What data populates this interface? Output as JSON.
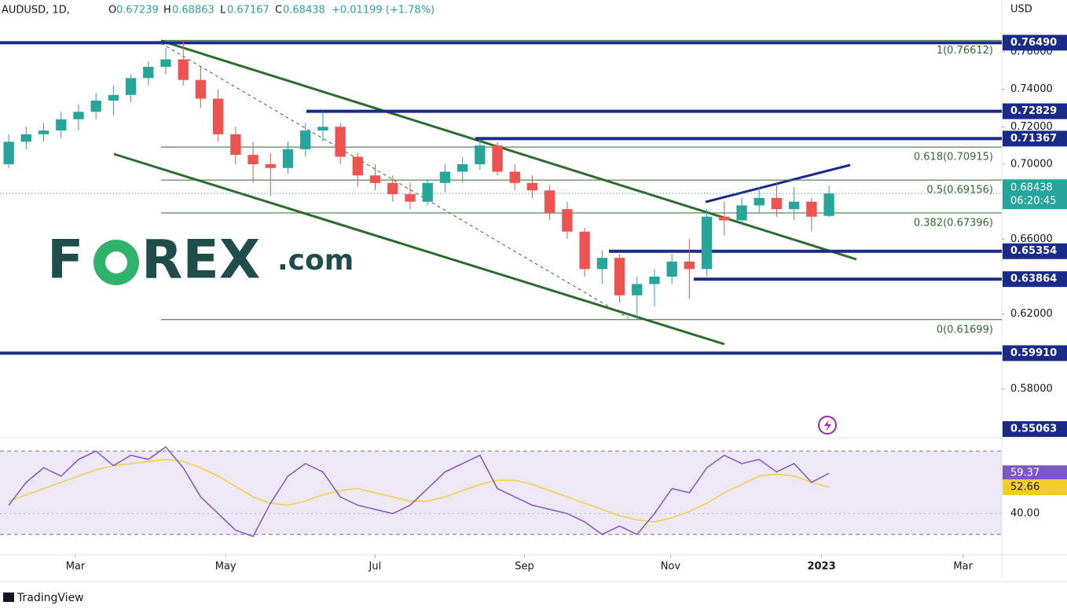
{
  "header": {
    "symbol": "AUDUSD, 1D,",
    "o_label": "O",
    "o": "0.67239",
    "h_label": "H",
    "h": "0.68863",
    "l_label": "L",
    "l": "0.67167",
    "c_label": "C",
    "c": "0.68438",
    "change": "+0.01199 (+1.78%)"
  },
  "currency": "USD",
  "logo": {
    "left": "F",
    "right": "REX",
    "suffix": ".com"
  },
  "footer": "TradingView",
  "countdown": "06:20:45",
  "chart_data": [
    {
      "type": "candlestick",
      "up_color": "#26a69a",
      "down_color": "#ef5350",
      "open": [
        0.7,
        0.712,
        0.716,
        0.718,
        0.724,
        0.728,
        0.734,
        0.737,
        0.746,
        0.752,
        0.756,
        0.745,
        0.735,
        0.716,
        0.705,
        0.7,
        0.698,
        0.708,
        0.718,
        0.72,
        0.704,
        0.694,
        0.69,
        0.684,
        0.68,
        0.69,
        0.696,
        0.7,
        0.71,
        0.696,
        0.69,
        0.686,
        0.676,
        0.664,
        0.644,
        0.65,
        0.63,
        0.636,
        0.64,
        0.648,
        0.644,
        0.672,
        0.67,
        0.678,
        0.682,
        0.676,
        0.68,
        0.67239
      ],
      "high": [
        0.716,
        0.72,
        0.722,
        0.728,
        0.732,
        0.738,
        0.742,
        0.748,
        0.755,
        0.762,
        0.76612,
        0.752,
        0.74,
        0.72,
        0.712,
        0.706,
        0.712,
        0.722,
        0.72829,
        0.722,
        0.706,
        0.7,
        0.694,
        0.69,
        0.692,
        0.7,
        0.704,
        0.71367,
        0.712,
        0.7,
        0.694,
        0.689,
        0.68,
        0.666,
        0.654,
        0.652,
        0.64,
        0.644,
        0.652,
        0.66,
        0.676,
        0.68,
        0.682,
        0.688,
        0.69,
        0.688,
        0.682,
        0.68863
      ],
      "low": [
        0.698,
        0.708,
        0.712,
        0.714,
        0.718,
        0.724,
        0.726,
        0.733,
        0.742,
        0.748,
        0.742,
        0.73,
        0.712,
        0.7,
        0.69,
        0.683,
        0.695,
        0.704,
        0.712,
        0.7,
        0.688,
        0.686,
        0.68,
        0.676,
        0.678,
        0.685,
        0.69,
        0.697,
        0.694,
        0.686,
        0.682,
        0.67,
        0.66,
        0.64,
        0.636,
        0.626,
        0.61699,
        0.624,
        0.636,
        0.628,
        0.64,
        0.662,
        0.668,
        0.674,
        0.672,
        0.67,
        0.664,
        0.67167
      ],
      "close": [
        0.712,
        0.716,
        0.718,
        0.724,
        0.728,
        0.734,
        0.737,
        0.746,
        0.752,
        0.756,
        0.745,
        0.735,
        0.716,
        0.705,
        0.7,
        0.698,
        0.708,
        0.718,
        0.72,
        0.704,
        0.694,
        0.69,
        0.684,
        0.68,
        0.69,
        0.696,
        0.7,
        0.71,
        0.696,
        0.69,
        0.686,
        0.674,
        0.664,
        0.644,
        0.65,
        0.63,
        0.636,
        0.64,
        0.648,
        0.644,
        0.672,
        0.67,
        0.678,
        0.682,
        0.676,
        0.68,
        0.672,
        0.68438
      ],
      "last": {
        "value": 0.68438,
        "label": "0.68438"
      },
      "ylim": [
        0.5548,
        0.7877
      ],
      "yticks": [
        {
          "value": 0.76,
          "label": "0.76000"
        },
        {
          "value": 0.74,
          "label": "0.74000"
        },
        {
          "value": 0.72,
          "label": "0.72000"
        },
        {
          "value": 0.7,
          "label": "0.70000"
        },
        {
          "value": 0.66,
          "label": "0.66000"
        },
        {
          "value": 0.62,
          "label": "0.62000"
        },
        {
          "value": 0.58,
          "label": "0.58000"
        }
      ],
      "xlim": [
        0,
        57.4
      ],
      "xticks": [
        {
          "value": 4.32,
          "label": "Mar"
        },
        {
          "value": 12.93,
          "label": "May"
        },
        {
          "value": 21.49,
          "label": "Jul"
        },
        {
          "value": 30.05,
          "label": "Sep"
        },
        {
          "value": 38.42,
          "label": "Nov"
        },
        {
          "value": 47.07,
          "label": "2023"
        },
        {
          "value": 55.18,
          "label": "Mar"
        }
      ],
      "levels": [
        {
          "value": 0.7649,
          "label": "0.76490"
        },
        {
          "value": 0.72829,
          "label": "0.72829"
        },
        {
          "value": 0.71367,
          "label": "0.71367"
        },
        {
          "value": 0.65354,
          "label": "0.65354"
        },
        {
          "value": 0.63864,
          "label": "0.63864"
        },
        {
          "value": 0.5991,
          "label": "0.59910"
        },
        {
          "value": 0.55063,
          "label": "0.55063"
        }
      ],
      "level_color": "#1a2a8a",
      "fib": [
        {
          "value": 0.76612,
          "label": "1(0.76612)"
        },
        {
          "value": 0.70915,
          "label": "0.618(0.70915)"
        },
        {
          "value": 0.69156,
          "label": "0.5(0.69156)"
        },
        {
          "value": 0.67396,
          "label": "0.382(0.67396)"
        },
        {
          "value": 0.61699,
          "label": "0(0.61699)"
        }
      ],
      "fib_color": "#2e6b2e"
    },
    {
      "type": "line",
      "ylim": [
        20.6,
        75.3
      ],
      "bands": [
        30,
        70
      ],
      "yticks": [
        {
          "value": 40,
          "label": "40.00"
        }
      ],
      "series": [
        {
          "color": "#7e57c2",
          "values": [
            44,
            55,
            62,
            58,
            66,
            70,
            63,
            68,
            66,
            72,
            62,
            48,
            40,
            32,
            29,
            45,
            58,
            64,
            60,
            48,
            44,
            42,
            40,
            44,
            52,
            60,
            64,
            68,
            52,
            48,
            44,
            42,
            40,
            36,
            30,
            34,
            30,
            40,
            52,
            50,
            62,
            68,
            64,
            66,
            60,
            64,
            55,
            59.37
          ],
          "value_labels": {
            "47": "59.37"
          }
        },
        {
          "color": "#f2cd2b",
          "values": [
            46,
            49,
            52,
            55,
            58,
            61,
            63,
            64,
            65,
            66,
            65,
            62,
            58,
            53,
            48,
            45,
            44,
            46,
            49,
            51,
            52,
            50,
            48,
            46,
            46,
            48,
            51,
            54,
            56,
            56,
            54,
            51,
            48,
            45,
            42,
            39,
            37,
            36,
            38,
            41,
            45,
            50,
            54,
            58,
            59,
            58,
            55,
            52.66
          ],
          "value_labels": {
            "47": "52.66"
          }
        }
      ]
    }
  ]
}
